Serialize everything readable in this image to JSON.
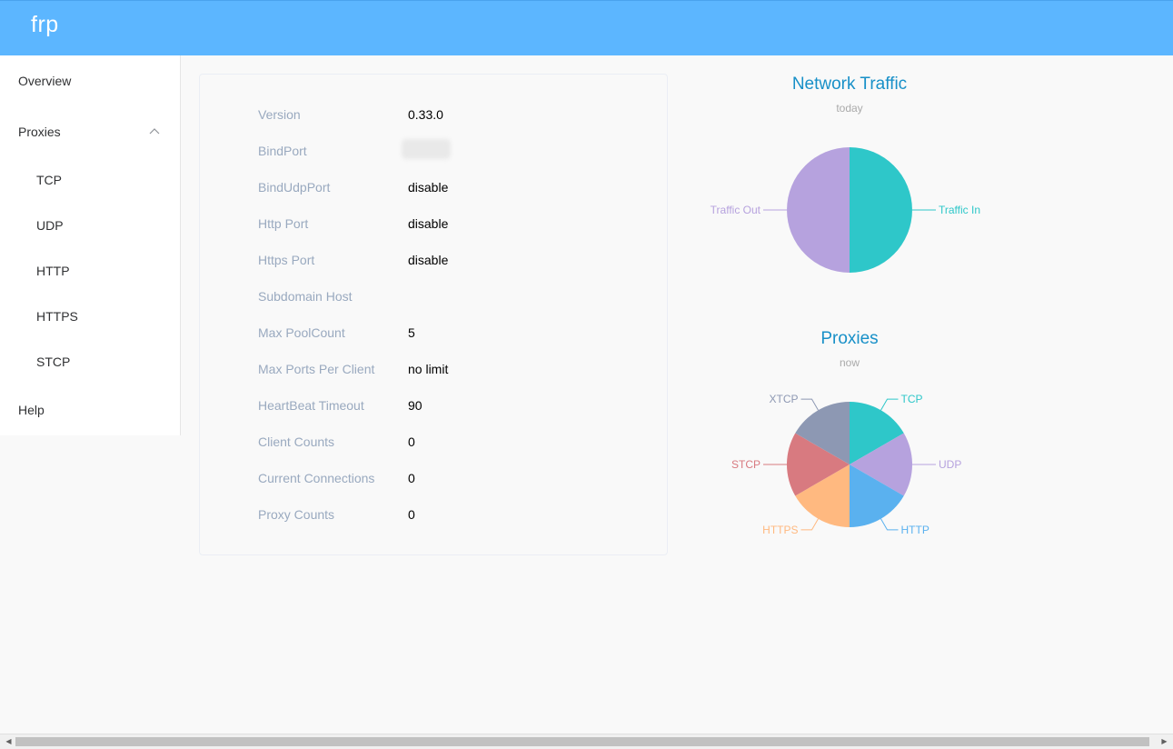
{
  "app": {
    "brand": "frp"
  },
  "sidebar": {
    "overview": "Overview",
    "proxies": "Proxies",
    "sub": [
      "TCP",
      "UDP",
      "HTTP",
      "HTTPS",
      "STCP"
    ],
    "help": "Help"
  },
  "info": [
    {
      "label": "Version",
      "value": "0.33.0"
    },
    {
      "label": "BindPort",
      "value": ""
    },
    {
      "label": "BindUdpPort",
      "value": "disable"
    },
    {
      "label": "Http Port",
      "value": "disable"
    },
    {
      "label": "Https Port",
      "value": "disable"
    },
    {
      "label": "Subdomain Host",
      "value": ""
    },
    {
      "label": "Max PoolCount",
      "value": "5"
    },
    {
      "label": "Max Ports Per Client",
      "value": "no limit"
    },
    {
      "label": "HeartBeat Timeout",
      "value": "90"
    },
    {
      "label": "Client Counts",
      "value": "0"
    },
    {
      "label": "Current Connections",
      "value": "0"
    },
    {
      "label": "Proxy Counts",
      "value": "0"
    }
  ],
  "chart_data": [
    {
      "type": "pie",
      "title": "Network Traffic",
      "subtitle": "today",
      "slices": [
        {
          "label": "Traffic In",
          "value": 1,
          "color": "#2ec7c9"
        },
        {
          "label": "Traffic Out",
          "value": 1,
          "color": "#b6a2de"
        }
      ]
    },
    {
      "type": "pie",
      "title": "Proxies",
      "subtitle": "now",
      "slices": [
        {
          "label": "TCP",
          "value": 1,
          "color": "#2ec7c9"
        },
        {
          "label": "UDP",
          "value": 1,
          "color": "#b6a2de"
        },
        {
          "label": "HTTP",
          "value": 1,
          "color": "#5ab1ef"
        },
        {
          "label": "HTTPS",
          "value": 1,
          "color": "#ffb980"
        },
        {
          "label": "STCP",
          "value": 1,
          "color": "#d87a80"
        },
        {
          "label": "XTCP",
          "value": 1,
          "color": "#8d98b3"
        }
      ]
    }
  ]
}
